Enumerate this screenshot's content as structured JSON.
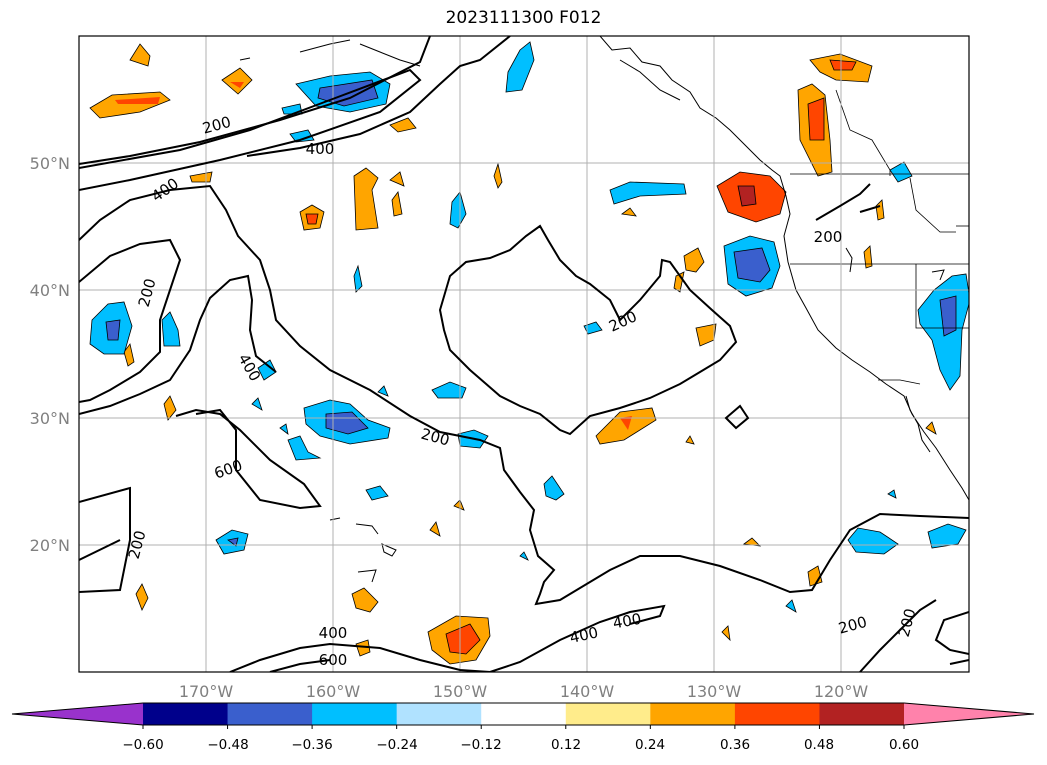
{
  "title": "2023111300 F012",
  "map": {
    "lat_labels": [
      "50°N",
      "40°N",
      "30°N",
      "20°N"
    ],
    "lon_labels": [
      "170°W",
      "160°W",
      "150°W",
      "140°W",
      "130°W",
      "120°W"
    ],
    "gridlines": true
  },
  "contours": {
    "levels": [
      200,
      400,
      600
    ],
    "labels": [
      "200",
      "200",
      "200",
      "200",
      "200",
      "200",
      "200",
      "200",
      "400",
      "400",
      "400",
      "400",
      "400",
      "400",
      "600",
      "600"
    ]
  },
  "colorbar": {
    "extend": "both",
    "ticks": [
      "−0.60",
      "−0.48",
      "−0.36",
      "−0.24",
      "−0.12",
      "0.12",
      "0.24",
      "0.36",
      "0.48",
      "0.60"
    ],
    "colors": [
      "#9932cc",
      "#00008b",
      "#3a5fcd",
      "#00bfff",
      "#b0e2ff",
      "#ffffff",
      "#ffec8b",
      "#ffa500",
      "#ff4500",
      "#b22222",
      "#ff82ab"
    ]
  }
}
